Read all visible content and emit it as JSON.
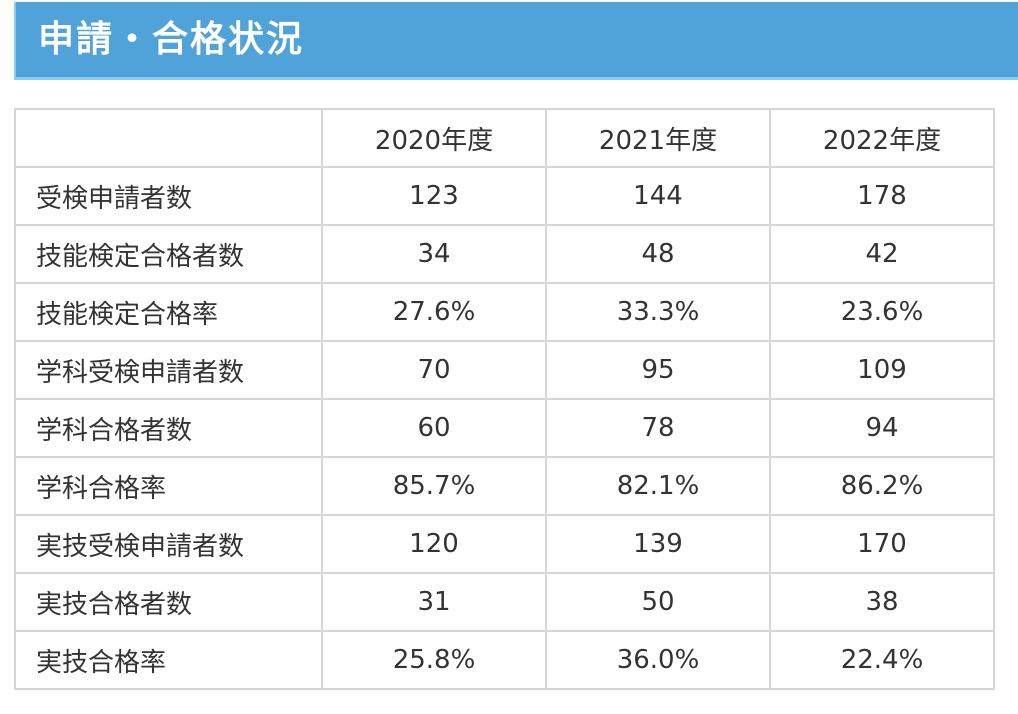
{
  "section": {
    "title": "申請・合格状況"
  },
  "table": {
    "corner": "",
    "years": [
      "2020年度",
      "2021年度",
      "2022年度"
    ],
    "rows": [
      {
        "label": "受検申請者数",
        "values": [
          "123",
          "144",
          "178"
        ]
      },
      {
        "label": "技能検定合格者数",
        "values": [
          "34",
          "48",
          "42"
        ]
      },
      {
        "label": "技能検定合格率",
        "values": [
          "27.6%",
          "33.3%",
          "23.6%"
        ]
      },
      {
        "label": "学科受検申請者数",
        "values": [
          "70",
          "95",
          "109"
        ]
      },
      {
        "label": "学科合格者数",
        "values": [
          "60",
          "78",
          "94"
        ]
      },
      {
        "label": "学科合格率",
        "values": [
          "85.7%",
          "82.1%",
          "86.2%"
        ]
      },
      {
        "label": "実技受検申請者数",
        "values": [
          "120",
          "139",
          "170"
        ]
      },
      {
        "label": "実技合格者数",
        "values": [
          "31",
          "50",
          "38"
        ]
      },
      {
        "label": "実技合格率",
        "values": [
          "25.8%",
          "36.0%",
          "22.4%"
        ]
      }
    ]
  },
  "colors": {
    "header_bg": "#4fa3d8",
    "header_accent": "#8ccaf0",
    "border": "#d6d6d6",
    "text": "#333333"
  }
}
